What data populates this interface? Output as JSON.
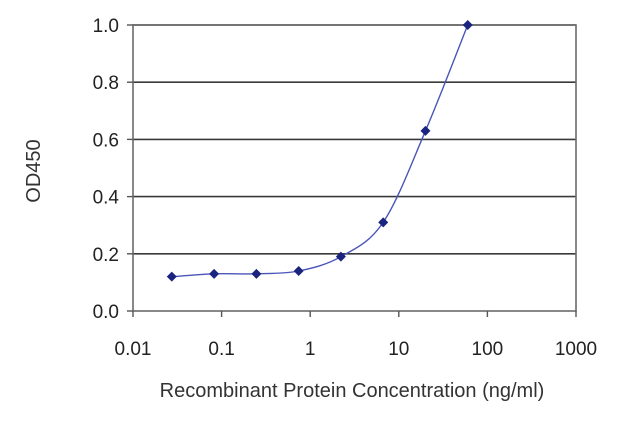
{
  "chart_data": {
    "type": "scatter",
    "title": "",
    "xlabel": "Recombinant Protein Concentration (ng/ml)",
    "ylabel": "OD450",
    "x_scale": "log",
    "xlim": [
      0.01,
      1000
    ],
    "ylim": [
      0.0,
      1.0
    ],
    "x_ticks": [
      0.01,
      0.1,
      1,
      10,
      100,
      1000
    ],
    "x_tick_labels": [
      "0.01",
      "0.1",
      "1",
      "10",
      "100",
      "1000"
    ],
    "y_ticks": [
      0.0,
      0.2,
      0.4,
      0.6,
      0.8,
      1.0
    ],
    "y_tick_labels": [
      "0.0",
      "0.2",
      "0.4",
      "0.6",
      "0.8",
      "1.0"
    ],
    "grid": "horizontal",
    "series": [
      {
        "x": [
          0.0274,
          0.0823,
          0.247,
          0.741,
          2.22,
          6.67,
          20.0,
          60.0
        ],
        "y": [
          0.12,
          0.13,
          0.13,
          0.14,
          0.19,
          0.31,
          0.63,
          1.0
        ],
        "color": "#1a237e",
        "fit_color": "#4a55b8"
      }
    ]
  }
}
